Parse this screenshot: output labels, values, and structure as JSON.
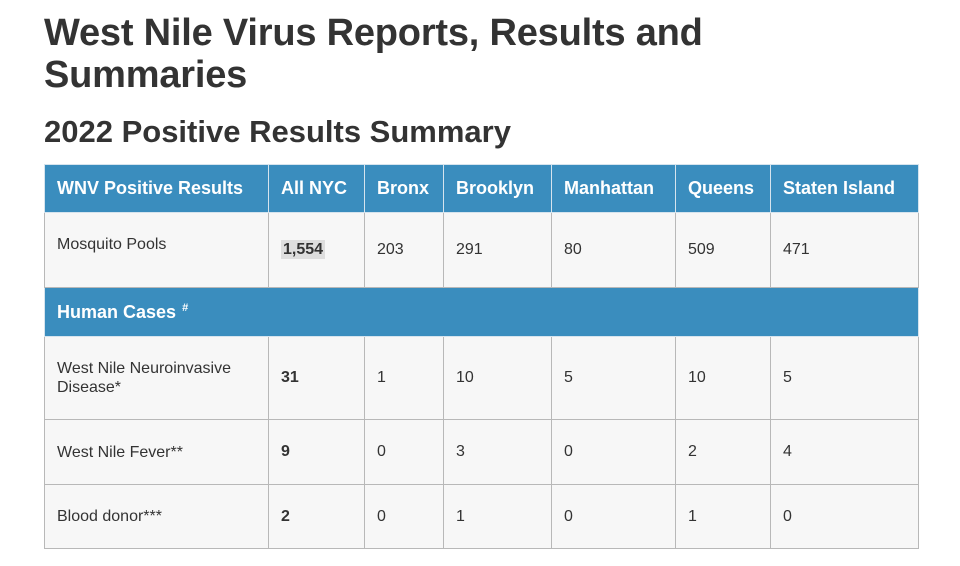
{
  "page_title": "West Nile Virus Reports, Results and Summaries",
  "section_title": "2022 Positive Results Summary",
  "table": {
    "headers": [
      "WNV Positive Results",
      "All NYC",
      "Bronx",
      "Brooklyn",
      "Manhattan",
      "Queens",
      "Staten Island"
    ],
    "mosquito_row": {
      "label": "Mosquito Pools",
      "values": [
        "1,554",
        "203",
        "291",
        "80",
        "509",
        "471"
      ]
    },
    "human_cases": {
      "label": "Human Cases",
      "marker": "#"
    },
    "rows": [
      {
        "label": "West Nile Neuroinvasive Disease*",
        "values": [
          "31",
          "1",
          "10",
          "5",
          "10",
          "5"
        ]
      },
      {
        "label": "West Nile Fever**",
        "values": [
          "9",
          "0",
          "3",
          "0",
          "2",
          "4"
        ]
      },
      {
        "label": "Blood donor***",
        "values": [
          "2",
          "0",
          "1",
          "0",
          "1",
          "0"
        ]
      }
    ]
  },
  "colors": {
    "header_background": "#3a8dbe",
    "cell_background": "#f7f7f7"
  }
}
